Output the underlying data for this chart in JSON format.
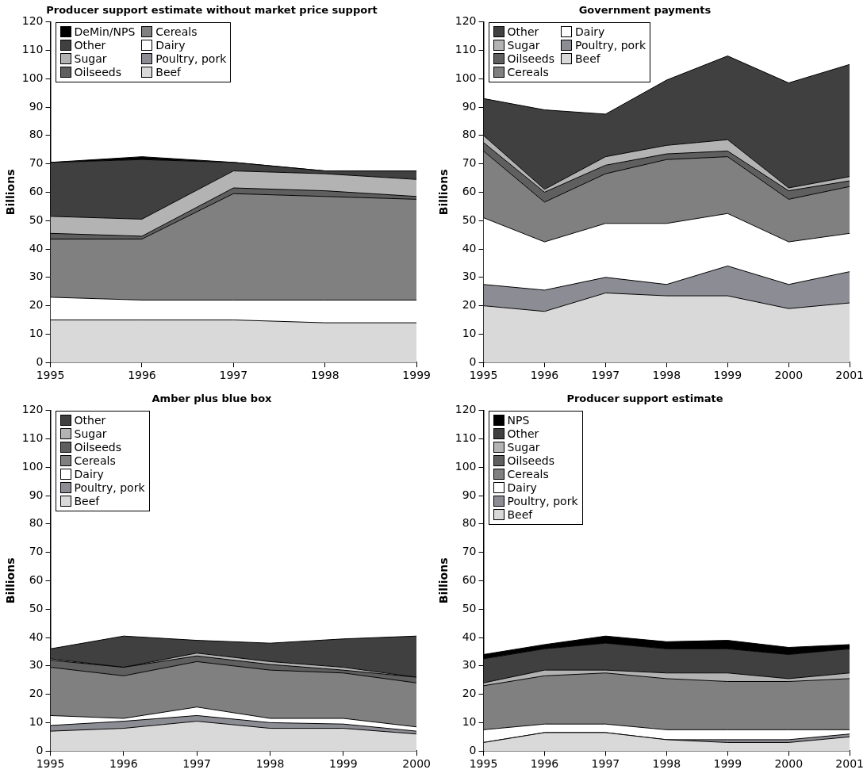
{
  "chart_data": [
    {
      "type": "area",
      "title": "Producer support estimate without market price support",
      "ylabel": "Billions",
      "stacked": true,
      "legend": "top left",
      "x": [
        1995,
        1996,
        1997,
        1998,
        1999
      ],
      "xlim": [
        1995,
        1999
      ],
      "xticks": [
        1995,
        1996,
        1997,
        1998,
        1999
      ],
      "ylim": [
        0,
        120
      ],
      "yticks": [
        0,
        10,
        20,
        30,
        40,
        50,
        60,
        70,
        80,
        90,
        100,
        110,
        120
      ],
      "series": [
        {
          "name": "Beef",
          "color": "#d9d9d9",
          "values": [
            15,
            15,
            15,
            14,
            14
          ]
        },
        {
          "name": "Poultry, pork",
          "color": "#8c8c94",
          "values": [
            null,
            null,
            null,
            null,
            null
          ]
        },
        {
          "name": "Dairy",
          "color": "#ffffff",
          "values": [
            8,
            7,
            7,
            8,
            8
          ]
        },
        {
          "name": "Cereals",
          "color": "#808080",
          "values": [
            20.5,
            21.5,
            37.5,
            36.5,
            35.5
          ]
        },
        {
          "name": "Oilseeds",
          "color": "#5f5f5f",
          "values": [
            2,
            1,
            2,
            2,
            1
          ]
        },
        {
          "name": "Sugar",
          "color": "#b3b3b3",
          "values": [
            6,
            6,
            6,
            6,
            6
          ]
        },
        {
          "name": "Other",
          "color": "#404040",
          "values": [
            19,
            21,
            3,
            1,
            3
          ]
        },
        {
          "name": "DeMin/NPS",
          "color": "#000000",
          "values": [
            0,
            1,
            0,
            0,
            0
          ]
        }
      ]
    },
    {
      "type": "area",
      "title": "Government payments",
      "ylabel": "Billions",
      "stacked": true,
      "legend": "top left",
      "x": [
        1995,
        1996,
        1997,
        1998,
        1999,
        2000,
        2001
      ],
      "xlim": [
        1995,
        2001
      ],
      "xticks": [
        1995,
        1996,
        1997,
        1998,
        1999,
        2000,
        2001
      ],
      "ylim": [
        0,
        120
      ],
      "yticks": [
        0,
        10,
        20,
        30,
        40,
        50,
        60,
        70,
        80,
        90,
        100,
        110,
        120
      ],
      "series": [
        {
          "name": "Beef",
          "color": "#d9d9d9",
          "values": [
            20,
            18,
            24.5,
            23.5,
            23.5,
            19,
            21
          ]
        },
        {
          "name": "Poultry, pork",
          "color": "#8c8c94",
          "values": [
            7.5,
            7.5,
            5.5,
            4,
            10.5,
            8.5,
            11
          ]
        },
        {
          "name": "Dairy",
          "color": "#ffffff",
          "values": [
            23.5,
            17,
            19,
            21.5,
            18.5,
            15,
            13.5
          ]
        },
        {
          "name": "Cereals",
          "color": "#808080",
          "values": [
            23.5,
            14,
            17.5,
            22.5,
            20,
            15,
            16.5
          ]
        },
        {
          "name": "Oilseeds",
          "color": "#5f5f5f",
          "values": [
            3,
            3.5,
            3,
            2,
            2,
            3,
            2
          ]
        },
        {
          "name": "Sugar",
          "color": "#b3b3b3",
          "values": [
            2.5,
            1,
            3,
            3,
            4,
            1,
            1.5
          ]
        },
        {
          "name": "Other",
          "color": "#404040",
          "values": [
            13,
            28,
            15,
            23,
            29.5,
            37,
            39.5
          ]
        }
      ]
    },
    {
      "type": "area",
      "title": "Amber plus blue box",
      "ylabel": "Billions",
      "stacked": true,
      "legend": "top left",
      "x": [
        1995,
        1996,
        1997,
        1998,
        1999,
        2000
      ],
      "xlim": [
        1995,
        2000
      ],
      "xticks": [
        1995,
        1996,
        1997,
        1998,
        1999,
        2000
      ],
      "ylim": [
        0,
        120
      ],
      "yticks": [
        0,
        10,
        20,
        30,
        40,
        50,
        60,
        70,
        80,
        90,
        100,
        110,
        120
      ],
      "series": [
        {
          "name": "Beef",
          "color": "#d9d9d9",
          "values": [
            7,
            8,
            10.5,
            8,
            8,
            6
          ]
        },
        {
          "name": "Poultry, pork",
          "color": "#8c8c94",
          "values": [
            2,
            2.5,
            2,
            2,
            1.5,
            1
          ]
        },
        {
          "name": "Dairy",
          "color": "#ffffff",
          "values": [
            3.5,
            1,
            3,
            1.5,
            2,
            1.5
          ]
        },
        {
          "name": "Cereals",
          "color": "#808080",
          "values": [
            17,
            15,
            16,
            17,
            16,
            15.5
          ]
        },
        {
          "name": "Oilseeds",
          "color": "#5f5f5f",
          "values": [
            2.5,
            3,
            2,
            2,
            1,
            2
          ]
        },
        {
          "name": "Sugar",
          "color": "#b3b3b3",
          "values": [
            0.5,
            0,
            1,
            1,
            1,
            0
          ]
        },
        {
          "name": "Other",
          "color": "#404040",
          "values": [
            3.5,
            11,
            4.5,
            6.5,
            10,
            14.5
          ]
        }
      ]
    },
    {
      "type": "area",
      "title": "Producer support estimate",
      "ylabel": "Billions",
      "stacked": true,
      "legend": "top left",
      "x": [
        1995,
        1996,
        1997,
        1998,
        1999,
        2000,
        2001
      ],
      "xlim": [
        1995,
        2001
      ],
      "xticks": [
        1995,
        1996,
        1997,
        1998,
        1999,
        2000,
        2001
      ],
      "ylim": [
        0,
        120
      ],
      "yticks": [
        0,
        10,
        20,
        30,
        40,
        50,
        60,
        70,
        80,
        90,
        100,
        110,
        120
      ],
      "series": [
        {
          "name": "Beef",
          "color": "#d9d9d9",
          "values": [
            3,
            6.5,
            6.5,
            4,
            3,
            3,
            5
          ]
        },
        {
          "name": "Poultry, pork",
          "color": "#8c8c94",
          "values": [
            0,
            0,
            0,
            0,
            1,
            1,
            1
          ]
        },
        {
          "name": "Dairy",
          "color": "#ffffff",
          "values": [
            4.5,
            3,
            3,
            3.5,
            3.5,
            3.5,
            1.5
          ]
        },
        {
          "name": "Cereals",
          "color": "#808080",
          "values": [
            15.5,
            17,
            18,
            18,
            17,
            17,
            18
          ]
        },
        {
          "name": "Oilseeds",
          "color": "#5f5f5f",
          "values": [
            null,
            null,
            null,
            null,
            null,
            null,
            null
          ]
        },
        {
          "name": "Sugar",
          "color": "#b3b3b3",
          "values": [
            1,
            2,
            1,
            2,
            3,
            1,
            2
          ]
        },
        {
          "name": "Other",
          "color": "#404040",
          "values": [
            8.5,
            7.5,
            9.5,
            8.5,
            8.5,
            8.5,
            8.5
          ]
        },
        {
          "name": "NPS",
          "color": "#000000",
          "values": [
            1.5,
            1.5,
            2.5,
            2.5,
            3,
            2.5,
            1.5
          ]
        }
      ]
    }
  ]
}
